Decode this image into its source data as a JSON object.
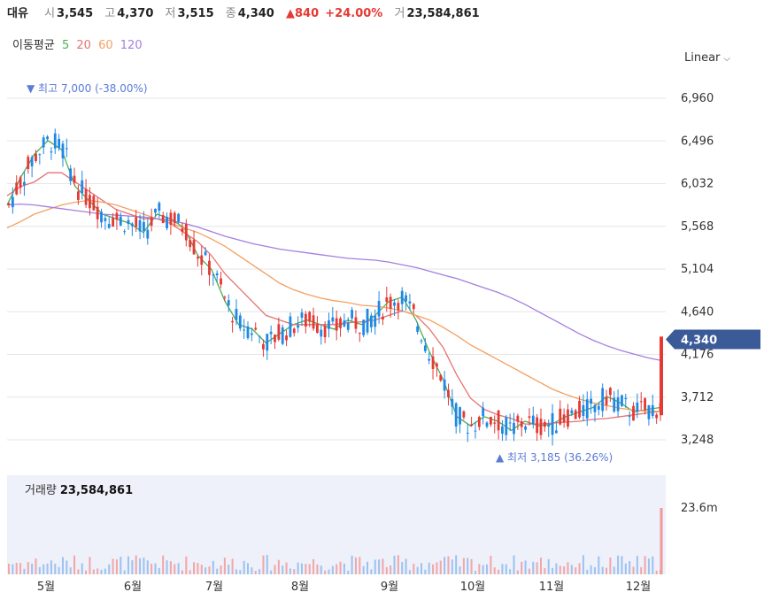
{
  "header": {
    "name": "대유",
    "open_label": "시",
    "open": "3,545",
    "high_label": "고",
    "high": "4,370",
    "low_label": "저",
    "low": "3,515",
    "close_label": "종",
    "close": "4,340",
    "change": "▲840",
    "change_pct": "+24.00%",
    "volume_label": "거",
    "volume": "23,584,861"
  },
  "ma_legend": {
    "title": "이동평균",
    "items": [
      {
        "label": "5",
        "color": "#4caf50"
      },
      {
        "label": "20",
        "color": "#e57373"
      },
      {
        "label": "60",
        "color": "#f4a060"
      },
      {
        "label": "120",
        "color": "#a57ee0"
      }
    ]
  },
  "scale_selector": "Linear",
  "colors": {
    "up": "#e53935",
    "down": "#1e88e5",
    "price_tag": "#3a5a98"
  },
  "chart_data": {
    "type": "candlestick",
    "yticks": [
      "6,960",
      "6,496",
      "6,032",
      "5,568",
      "5,104",
      "4,640",
      "4,176",
      "3,712",
      "3,248"
    ],
    "ylim": [
      3000,
      7300
    ],
    "xticks": [
      "5월",
      "6월",
      "7월",
      "8월",
      "9월",
      "10월",
      "11월",
      "12월"
    ],
    "max_label": "▼ 최고 7,000 (-38.00%)",
    "min_label": "▲ 최저 3,185 (36.26%)",
    "current_price": "4,340",
    "volume_title": "거래량",
    "volume_value": "23,584,861",
    "volume_tick": "23.6m",
    "ma_series": [
      {
        "name": "5",
        "color": "#4caf50",
        "values": [
          5800,
          6100,
          6350,
          6500,
          6400,
          6000,
          5850,
          5700,
          5650,
          5600,
          5500,
          5700,
          5650,
          5550,
          5250,
          5100,
          4750,
          4500,
          4450,
          4300,
          4400,
          4500,
          4550,
          4500,
          4450,
          4550,
          4500,
          4600,
          4750,
          4800,
          4550,
          4200,
          3900,
          3500,
          3400,
          3500,
          3450,
          3350,
          3450,
          3400,
          3420,
          3500,
          3550,
          3600,
          3720,
          3650,
          3550,
          3580,
          3600
        ]
      },
      {
        "name": "20",
        "color": "#e57373",
        "values": [
          5900,
          6000,
          6050,
          6150,
          6150,
          6050,
          5950,
          5850,
          5750,
          5700,
          5650,
          5650,
          5600,
          5500,
          5400,
          5250,
          5050,
          4900,
          4750,
          4600,
          4550,
          4500,
          4500,
          4500,
          4500,
          4520,
          4530,
          4550,
          4600,
          4650,
          4600,
          4450,
          4250,
          3950,
          3700,
          3580,
          3520,
          3480,
          3420,
          3420,
          3430,
          3440,
          3450,
          3470,
          3480,
          3500,
          3520,
          3540,
          3560
        ]
      },
      {
        "name": "60",
        "color": "#f4a060",
        "values": [
          5550,
          5620,
          5700,
          5750,
          5800,
          5830,
          5850,
          5830,
          5800,
          5750,
          5700,
          5650,
          5600,
          5550,
          5500,
          5430,
          5350,
          5250,
          5150,
          5050,
          4950,
          4880,
          4830,
          4790,
          4760,
          4740,
          4710,
          4700,
          4680,
          4650,
          4600,
          4550,
          4470,
          4380,
          4280,
          4200,
          4120,
          4040,
          3960,
          3880,
          3800,
          3740,
          3690,
          3650,
          3620,
          3590,
          3570,
          3560,
          3560
        ]
      },
      {
        "name": "120",
        "color": "#a57ee0",
        "values": [
          5800,
          5810,
          5800,
          5780,
          5760,
          5740,
          5720,
          5700,
          5690,
          5680,
          5670,
          5650,
          5630,
          5600,
          5560,
          5510,
          5460,
          5420,
          5380,
          5350,
          5320,
          5300,
          5280,
          5260,
          5240,
          5220,
          5210,
          5200,
          5180,
          5150,
          5120,
          5080,
          5040,
          5000,
          4950,
          4900,
          4850,
          4790,
          4720,
          4640,
          4560,
          4480,
          4400,
          4330,
          4270,
          4220,
          4180,
          4140,
          4110
        ]
      }
    ]
  }
}
